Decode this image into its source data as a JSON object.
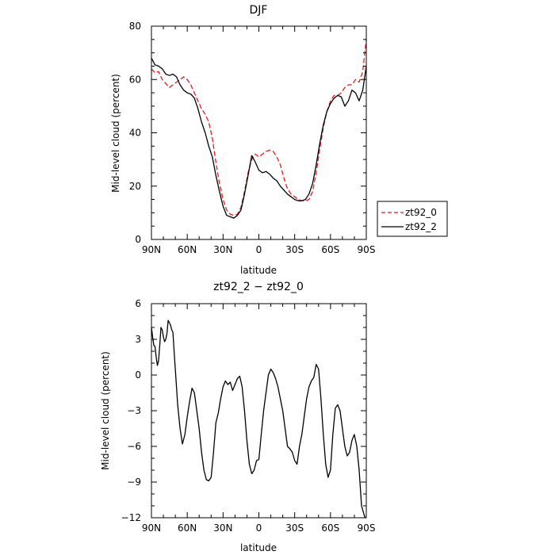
{
  "chart_data": [
    {
      "type": "line",
      "title": "DJF",
      "xlabel": "latitude",
      "ylabel": "Mid-level cloud (percent)",
      "xlim": [
        90,
        -90
      ],
      "ylim": [
        0,
        80
      ],
      "xticks": [
        90,
        60,
        30,
        0,
        -30,
        -60,
        -90
      ],
      "xtick_labels": [
        "90N",
        "60N",
        "30N",
        "0",
        "30S",
        "60S",
        "90S"
      ],
      "yticks": [
        0,
        20,
        40,
        60,
        80
      ],
      "ytick_labels": [
        "0",
        "20",
        "40",
        "60",
        "80"
      ],
      "legend": {
        "placement": "right"
      },
      "series": [
        {
          "name": "zt92_0",
          "color": "#e41a1c",
          "dash": "dashed",
          "x": [
            90,
            87,
            84,
            81,
            78,
            75,
            72,
            69,
            66,
            63,
            60,
            57,
            54,
            51,
            48,
            45,
            42,
            39,
            36,
            33,
            30,
            27,
            24,
            21,
            18,
            15,
            12,
            9,
            6,
            3,
            0,
            -3,
            -6,
            -9,
            -12,
            -15,
            -18,
            -21,
            -24,
            -27,
            -30,
            -33,
            -36,
            -39,
            -42,
            -45,
            -48,
            -51,
            -54,
            -57,
            -60,
            -63,
            -66,
            -69,
            -72,
            -75,
            -78,
            -81,
            -84,
            -87,
            -90
          ],
          "y": [
            64,
            62.5,
            63,
            60,
            58.5,
            57,
            58,
            59,
            60,
            61,
            60,
            58,
            55,
            52,
            49,
            47,
            44,
            38,
            29,
            21,
            15,
            11,
            9.5,
            9,
            9.5,
            12,
            18,
            25,
            30,
            32,
            31,
            32,
            33,
            33.5,
            33,
            31,
            28,
            23,
            19,
            17,
            16,
            15,
            14.5,
            14.5,
            15,
            18,
            25,
            34,
            42,
            48,
            52,
            54,
            54,
            55,
            57,
            58,
            58,
            60,
            59,
            63,
            75
          ]
        },
        {
          "name": "zt92_2",
          "color": "#000000",
          "dash": "solid",
          "x": [
            90,
            87,
            84,
            81,
            78,
            75,
            72,
            69,
            66,
            63,
            60,
            57,
            54,
            51,
            48,
            45,
            42,
            39,
            36,
            33,
            30,
            27,
            24,
            21,
            18,
            15,
            12,
            9,
            6,
            3,
            0,
            -3,
            -6,
            -9,
            -12,
            -15,
            -18,
            -21,
            -24,
            -27,
            -30,
            -33,
            -36,
            -39,
            -42,
            -45,
            -48,
            -51,
            -54,
            -57,
            -60,
            -63,
            -66,
            -69,
            -72,
            -75,
            -78,
            -81,
            -84,
            -87,
            -90
          ],
          "y": [
            68,
            65.5,
            65,
            64,
            62,
            61.5,
            62,
            61,
            58,
            56,
            55,
            54.5,
            53,
            49,
            44,
            40,
            35,
            31,
            24,
            18,
            12.5,
            9,
            8.5,
            8,
            9,
            11,
            17,
            24,
            31.5,
            29,
            26,
            25,
            25.5,
            24.5,
            23,
            22,
            20,
            18.5,
            17,
            16,
            15,
            14.5,
            14.5,
            15,
            17,
            21,
            28,
            36,
            43,
            48,
            51,
            53,
            54,
            53.5,
            50,
            52,
            56,
            55,
            52,
            56,
            65
          ]
        }
      ]
    },
    {
      "type": "line",
      "title": "zt92_2 − zt92_0",
      "xlabel": "latitude",
      "ylabel": "Mid-level cloud (percent)",
      "xlim": [
        90,
        -90
      ],
      "ylim": [
        -12,
        6
      ],
      "xticks": [
        90,
        60,
        30,
        0,
        -30,
        -60,
        -90
      ],
      "xtick_labels": [
        "90N",
        "60N",
        "30N",
        "0",
        "30S",
        "60S",
        "90S"
      ],
      "yticks": [
        -12,
        -9,
        -6,
        -3,
        0,
        3,
        6
      ],
      "ytick_labels": [
        "−12",
        "−9",
        "−6",
        "−3",
        "0",
        "3",
        "6"
      ],
      "series": [
        {
          "color": "#000000",
          "dash": "solid",
          "x": [
            90,
            89,
            88,
            87,
            86,
            85,
            84,
            83,
            82,
            81,
            80,
            79,
            78,
            77,
            76,
            75,
            74,
            73,
            72,
            71,
            70,
            69,
            68,
            66,
            64,
            62,
            60,
            58,
            56,
            54,
            52,
            50,
            48,
            46,
            44,
            42,
            40,
            38,
            36,
            34,
            32,
            30,
            28,
            26,
            24,
            22,
            20,
            18,
            16,
            14,
            12,
            10,
            8,
            6,
            4,
            2,
            0,
            -2,
            -4,
            -6,
            -8,
            -10,
            -12,
            -14,
            -16,
            -18,
            -20,
            -22,
            -24,
            -26,
            -28,
            -30,
            -32,
            -34,
            -36,
            -38,
            -40,
            -42,
            -44,
            -46,
            -48,
            -50,
            -52,
            -54,
            -56,
            -58,
            -60,
            -62,
            -64,
            -66,
            -68,
            -70,
            -72,
            -74,
            -76,
            -78,
            -80,
            -82,
            -84,
            -86,
            -88,
            -89,
            -90
          ],
          "y": [
            4,
            3.2,
            2.5,
            2.4,
            1.5,
            0.8,
            1.2,
            2.5,
            4,
            3.8,
            3.2,
            2.8,
            3,
            3.5,
            4.6,
            4.4,
            4.2,
            3.8,
            3.6,
            2,
            0.5,
            -1,
            -2.5,
            -4.5,
            -5.8,
            -5,
            -3.5,
            -2.2,
            -1.1,
            -1.5,
            -3,
            -4.5,
            -6.5,
            -8,
            -8.8,
            -8.9,
            -8.6,
            -6.5,
            -4,
            -3.2,
            -2,
            -1,
            -0.5,
            -0.8,
            -0.6,
            -1.3,
            -0.8,
            -0.3,
            -0.1,
            -1,
            -3,
            -5.5,
            -7.5,
            -8.3,
            -8,
            -7.2,
            -7.1,
            -5,
            -3,
            -1.5,
            0,
            0.5,
            0.2,
            -0.3,
            -1,
            -2,
            -3,
            -4.5,
            -6,
            -6.2,
            -6.5,
            -7.2,
            -7.5,
            -6,
            -5,
            -3.5,
            -2,
            -1,
            -0.5,
            -0.2,
            0.9,
            0.5,
            -2,
            -5,
            -7.5,
            -8.6,
            -8,
            -5,
            -2.8,
            -2.5,
            -3,
            -4.5,
            -6,
            -6.8,
            -6.5,
            -5.5,
            -5,
            -6,
            -8,
            -11,
            -11.7,
            -12,
            -12
          ]
        }
      ]
    }
  ],
  "legend_labels": [
    "zt92_0",
    "zt92_2"
  ]
}
